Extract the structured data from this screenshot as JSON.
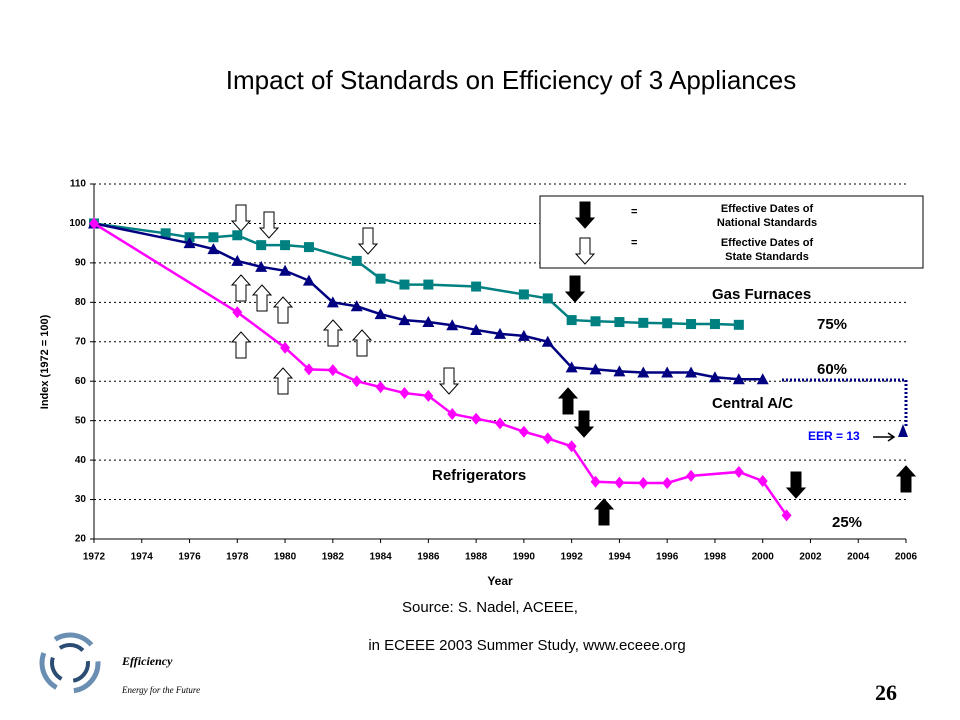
{
  "title": "Impact of Standards on Efficiency of 3 Appliances",
  "chart_data": {
    "type": "line",
    "ylabel": "Index (1972 = 100)",
    "xlabel": "Year",
    "xlim": [
      1972,
      2006
    ],
    "xticks": [
      1972,
      1974,
      1976,
      1978,
      1980,
      1982,
      1984,
      1986,
      1988,
      1990,
      1992,
      1994,
      1996,
      1998,
      2000,
      2002,
      2004,
      2006
    ],
    "ylim": [
      20,
      110
    ],
    "yticks": [
      20,
      30,
      40,
      50,
      60,
      70,
      80,
      90,
      100,
      110
    ],
    "grid": true,
    "series": [
      {
        "name": "Gas Furnaces",
        "color": "#008080",
        "marker": "square",
        "x": [
          1972,
          1975,
          1976,
          1977,
          1978,
          1979,
          1980,
          1981,
          1983,
          1984,
          1985,
          1986,
          1988,
          1990,
          1991,
          1992,
          1993,
          1994,
          1995,
          1996,
          1997,
          1998,
          1999
        ],
        "values": [
          100,
          97.5,
          96.5,
          96.5,
          97,
          94.5,
          94.5,
          94,
          90.5,
          86,
          84.5,
          84.5,
          84,
          82,
          81,
          75.5,
          75.2,
          75,
          74.8,
          74.7,
          74.5,
          74.5,
          74.3
        ]
      },
      {
        "name": "Central A/C",
        "color": "#000080",
        "marker": "triangle",
        "x": [
          1972,
          1976,
          1977,
          1978,
          1979,
          1980,
          1981,
          1982,
          1983,
          1984,
          1985,
          1986,
          1987,
          1988,
          1989,
          1990,
          1991,
          1992,
          1993,
          1994,
          1995,
          1996,
          1997,
          1998,
          1999,
          2000
        ],
        "values": [
          100,
          95,
          93.5,
          90.5,
          89,
          88,
          85.5,
          80,
          79,
          77,
          75.5,
          75,
          74.2,
          73,
          72,
          71.5,
          70,
          63.5,
          63,
          62.5,
          62.2,
          62.2,
          62.2,
          61,
          60.5,
          60.5
        ]
      },
      {
        "name": "Refrigerators",
        "color": "#ff00ff",
        "marker": "diamond",
        "x": [
          1972,
          1978,
          1980,
          1981,
          1982,
          1983,
          1984,
          1985,
          1986,
          1987,
          1988,
          1989,
          1990,
          1991,
          1992,
          1993,
          1994,
          1995,
          1996,
          1997,
          1999,
          2000,
          2001
        ],
        "values": [
          100,
          77.5,
          68.5,
          63,
          62.8,
          60,
          58.5,
          57,
          56.3,
          51.7,
          50.5,
          49.3,
          47.2,
          45.5,
          43.5,
          34.5,
          34.3,
          34.2,
          34.2,
          36,
          37,
          34.7,
          26
        ]
      }
    ],
    "annotations": [
      "75%",
      "60%",
      "25%",
      "EER = 13"
    ],
    "legend": {
      "equals": "=",
      "national": [
        "Effective Dates of",
        "National Standards"
      ],
      "state": [
        "Effective Dates of",
        "State Standards"
      ]
    }
  },
  "source": [
    "Source: S. Nadel, ACEEE,",
    "in ECEEE 2003 Summer Study, www.eceee.org"
  ],
  "footer": {
    "brand": "Efficiency",
    "tagline": "Energy for the Future",
    "page": "26"
  }
}
